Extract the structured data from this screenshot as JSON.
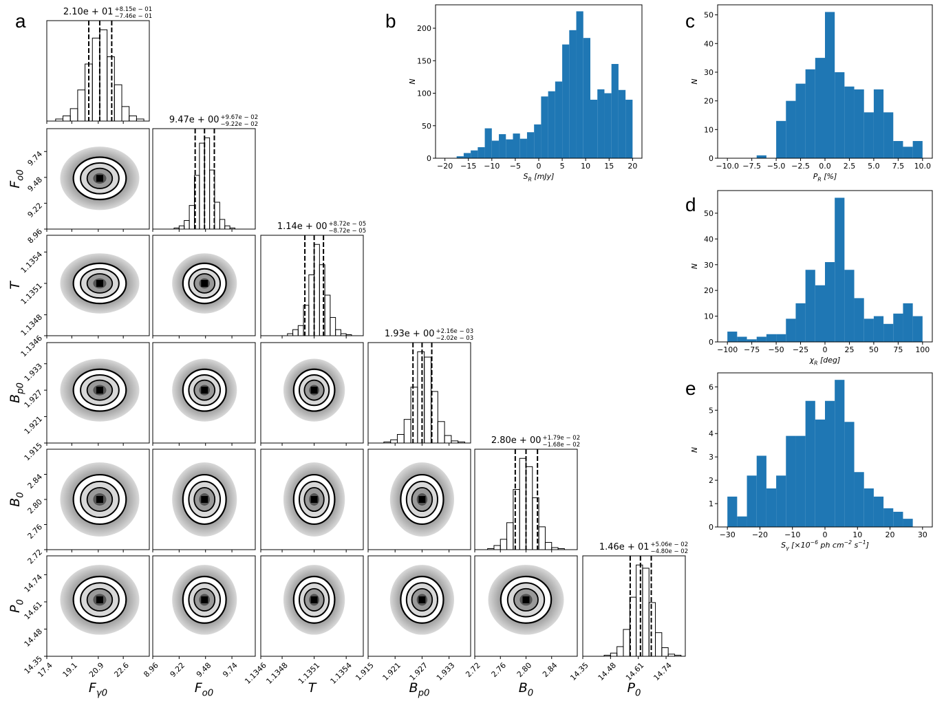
{
  "chart_data": [
    {
      "type": "corner",
      "panel_label": "a",
      "params": [
        {
          "label": [
            {
              "text": "F"
            },
            {
              "text": "γ0",
              "pos": "sub"
            }
          ],
          "xlim": [
            17.4,
            24.37
          ],
          "xticks": [
            17.4,
            19.1,
            20.9,
            22.6
          ],
          "median": {
            "value": 21.0,
            "label": "2.10e + 01"
          },
          "plus": {
            "value": 0.815,
            "label": "+8.15e − 01"
          },
          "minus": {
            "value": -0.746,
            "label": "−7.46e − 01"
          },
          "bins": [
            18,
            18.5,
            19,
            19.5,
            20,
            20.5,
            21,
            21.5,
            22,
            22.5,
            23,
            23.5,
            24
          ],
          "counts": [
            2,
            5,
            12,
            30,
            55,
            80,
            88,
            62,
            35,
            14,
            5,
            2
          ]
        },
        {
          "label": [
            {
              "text": "F"
            },
            {
              "text": "o0",
              "pos": "sub"
            }
          ],
          "xlim": [
            8.96,
            9.97
          ],
          "xticks": [
            8.96,
            9.22,
            9.48,
            9.74
          ],
          "median": {
            "value": 9.47,
            "label": "9.47e + 00"
          },
          "plus": {
            "value": 0.0967,
            "label": "+9.67e − 02"
          },
          "minus": {
            "value": -0.0922,
            "label": "−9.22e − 02"
          },
          "bins": [
            9.17,
            9.22,
            9.27,
            9.32,
            9.37,
            9.42,
            9.47,
            9.52,
            9.57,
            9.62,
            9.67,
            9.72,
            9.77
          ],
          "counts": [
            1,
            3,
            8,
            22,
            50,
            80,
            85,
            55,
            25,
            9,
            3,
            1
          ]
        },
        {
          "label": [
            {
              "text": "T"
            }
          ],
          "xlim": [
            1.1346,
            1.13556
          ],
          "xticks": [
            1.1346,
            1.1348,
            1.1351,
            1.1354
          ],
          "median": {
            "value": 1.1351,
            "label": "1.14e + 00"
          },
          "plus": {
            "value": 8.72e-05,
            "label": "+8.72e − 05"
          },
          "minus": {
            "value": -8.72e-05,
            "label": "−8.72e − 05"
          },
          "bins": [
            1.13485,
            1.1349,
            1.13495,
            1.135,
            1.13505,
            1.1351,
            1.13515,
            1.1352,
            1.13525,
            1.1353,
            1.13535,
            1.1354,
            1.13545
          ],
          "counts": [
            2,
            6,
            10,
            30,
            60,
            90,
            70,
            40,
            18,
            6,
            2,
            1
          ]
        },
        {
          "label": [
            {
              "text": "B"
            },
            {
              "text": "p0",
              "pos": "sub"
            }
          ],
          "xlim": [
            1.915,
            1.9378
          ],
          "xticks": [
            1.915,
            1.921,
            1.927,
            1.933
          ],
          "median": {
            "value": 1.927,
            "label": "1.93e + 00"
          },
          "plus": {
            "value": 0.00216,
            "label": "+2.16e − 03"
          },
          "minus": {
            "value": -0.00202,
            "label": "−2.02e − 03"
          },
          "bins": [
            1.9185,
            1.92,
            1.9215,
            1.923,
            1.9245,
            1.926,
            1.9275,
            1.929,
            1.9305,
            1.932,
            1.9335,
            1.935,
            1.9365
          ],
          "counts": [
            1,
            3,
            8,
            22,
            52,
            85,
            80,
            48,
            20,
            7,
            2,
            1
          ]
        },
        {
          "label": [
            {
              "text": "B"
            },
            {
              "text": "0",
              "pos": "sub"
            }
          ],
          "xlim": [
            2.72,
            2.88
          ],
          "xticks": [
            2.72,
            2.76,
            {
              "value": 2.8,
              "label": "2.80"
            },
            2.84
          ],
          "median": {
            "value": 2.8,
            "label": "2.80e + 00"
          },
          "plus": {
            "value": 0.0179,
            "label": "+1.79e − 02"
          },
          "minus": {
            "value": -0.0168,
            "label": "−1.68e − 02"
          },
          "bins": [
            2.74,
            2.75,
            2.76,
            2.77,
            2.78,
            2.79,
            2.8,
            2.81,
            2.82,
            2.83,
            2.84,
            2.85,
            2.86
          ],
          "counts": [
            1,
            4,
            10,
            26,
            58,
            88,
            80,
            50,
            22,
            7,
            2,
            1
          ]
        },
        {
          "label": [
            {
              "text": "P"
            },
            {
              "text": "0",
              "pos": "sub"
            }
          ],
          "xlim": [
            14.35,
            14.83
          ],
          "xticks": [
            14.35,
            14.48,
            14.61,
            14.74
          ],
          "median": {
            "value": 14.62,
            "label": "1.46e + 01"
          },
          "plus": {
            "value": 0.0506,
            "label": "+5.06e − 02"
          },
          "minus": {
            "value": -0.048,
            "label": "−4.80e − 02"
          },
          "bins": [
            14.45,
            14.48,
            14.51,
            14.54,
            14.57,
            14.6,
            14.63,
            14.66,
            14.69,
            14.72,
            14.75,
            14.78,
            14.81
          ],
          "counts": [
            1,
            3,
            9,
            25,
            55,
            85,
            82,
            50,
            22,
            8,
            2,
            1
          ]
        }
      ]
    },
    {
      "type": "histogram",
      "panel_label": "b",
      "color": "#1f77b4",
      "xlabel": [
        {
          "text": "S"
        },
        {
          "text": "R",
          "pos": "sub"
        },
        {
          "text": " [mJy]"
        }
      ],
      "ylabel": "N",
      "bins": [
        -17.5,
        -16,
        -14.5,
        -13,
        -11.5,
        -10,
        -8.5,
        -7,
        -5.5,
        -4,
        -2.5,
        -1,
        0.5,
        2,
        3.5,
        5,
        6.5,
        8,
        9.5,
        11,
        12.5,
        14,
        15.5,
        17,
        18.5,
        20
      ],
      "counts": [
        3,
        8,
        12,
        17,
        46,
        27,
        37,
        29,
        38,
        30,
        40,
        52,
        95,
        103,
        118,
        175,
        197,
        226,
        185,
        90,
        106,
        100,
        145,
        105,
        90
      ],
      "xlim": [
        -22,
        22
      ],
      "xticks": [
        {
          "value": -20,
          "label": "−20"
        },
        {
          "value": -15,
          "label": "−15"
        },
        {
          "value": -10,
          "label": "−10"
        },
        {
          "value": -5,
          "label": "−5"
        },
        0,
        5,
        10,
        15,
        20
      ],
      "ylim": [
        0,
        236
      ],
      "yticks": [
        0,
        50,
        100,
        150,
        200
      ]
    },
    {
      "type": "histogram",
      "panel_label": "c",
      "color": "#1f77b4",
      "xlabel": [
        {
          "text": "P"
        },
        {
          "text": "R",
          "pos": "sub"
        },
        {
          "text": " [%]"
        }
      ],
      "ylabel": "N",
      "bins": [
        -7,
        -6,
        -5,
        -4,
        -3,
        -2,
        -1,
        0,
        1,
        2,
        3,
        4,
        5,
        6,
        7,
        8,
        9,
        10
      ],
      "counts": [
        1,
        0,
        13,
        20,
        26,
        31,
        35,
        51,
        30,
        25,
        24,
        16,
        24,
        16,
        6,
        4,
        6
      ],
      "xlim": [
        -11,
        11
      ],
      "xticks": [
        {
          "value": -10,
          "label": "−10.0"
        },
        {
          "value": -7.5,
          "label": "−7.5"
        },
        {
          "value": -5,
          "label": "−5.0"
        },
        {
          "value": -2.5,
          "label": "−2.5"
        },
        {
          "value": 0,
          "label": "0.0"
        },
        2.5,
        {
          "value": 5,
          "label": "5.0"
        },
        7.5,
        {
          "value": 10,
          "label": "10.0"
        }
      ],
      "ylim": [
        0,
        53.5
      ],
      "yticks": [
        0,
        10,
        20,
        30,
        40,
        50
      ]
    },
    {
      "type": "histogram",
      "panel_label": "d",
      "color": "#1f77b4",
      "xlabel": [
        {
          "text": "χ"
        },
        {
          "text": "R",
          "pos": "sub"
        },
        {
          "text": " [deg]"
        }
      ],
      "ylabel": "N",
      "bins": [
        -100,
        -90,
        -80,
        -70,
        -60,
        -50,
        -40,
        -30,
        -20,
        -10,
        0,
        10,
        20,
        30,
        40,
        50,
        60,
        70,
        80,
        90,
        100
      ],
      "counts": [
        4,
        2,
        1,
        2,
        3,
        3,
        9,
        15,
        28,
        22,
        31,
        56,
        28,
        17,
        9,
        10,
        7,
        11,
        15,
        10
      ],
      "xlim": [
        -110,
        110
      ],
      "xticks": [
        {
          "value": -100,
          "label": "−100"
        },
        {
          "value": -75,
          "label": "−75"
        },
        {
          "value": -50,
          "label": "−50"
        },
        {
          "value": -25,
          "label": "−25"
        },
        0,
        25,
        50,
        75,
        100
      ],
      "ylim": [
        0,
        58.8
      ],
      "yticks": [
        0,
        10,
        20,
        30,
        40,
        50
      ]
    },
    {
      "type": "histogram",
      "panel_label": "e",
      "color": "#1f77b4",
      "xlabel": [
        {
          "text": "S"
        },
        {
          "text": "γ",
          "pos": "sub"
        },
        {
          "text": " [×10"
        },
        {
          "text": "−6",
          "pos": "sup"
        },
        {
          "text": " ph cm"
        },
        {
          "text": "−2",
          "pos": "sup"
        },
        {
          "text": " s"
        },
        {
          "text": "−1",
          "pos": "sup"
        },
        {
          "text": "]"
        }
      ],
      "ylabel": "N",
      "bins": [
        -30,
        -27,
        -24,
        -21,
        -18,
        -15,
        -12,
        -9,
        -6,
        -3,
        0,
        3,
        6,
        9,
        12,
        15,
        18,
        21,
        24,
        27
      ],
      "counts": [
        1.3,
        0.45,
        2.2,
        3.05,
        1.65,
        2.2,
        3.9,
        3.9,
        5.4,
        4.6,
        5.4,
        6.3,
        4.5,
        2.35,
        1.65,
        1.3,
        0.8,
        0.65,
        0.35
      ],
      "xlim": [
        -33,
        33
      ],
      "xticks": [
        {
          "value": -30,
          "label": "−30"
        },
        {
          "value": -20,
          "label": "−20"
        },
        {
          "value": -10,
          "label": "−10"
        },
        0,
        10,
        20,
        30
      ],
      "ylim": [
        0,
        6.6
      ],
      "yticks": [
        0,
        1,
        2,
        3,
        4,
        5,
        6
      ]
    }
  ]
}
